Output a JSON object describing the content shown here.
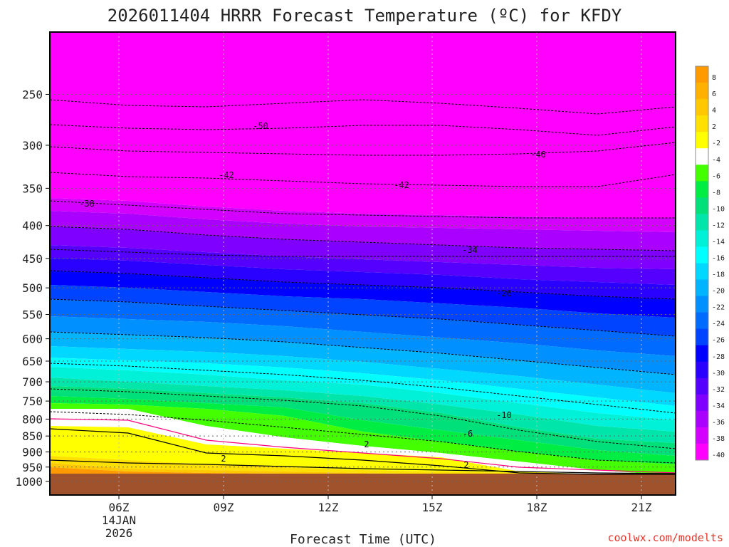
{
  "chart_data": {
    "type": "heatmap",
    "title": "2026011404 HRRR Forecast Temperature (ºC) for KFDY",
    "xlabel": "Forecast Time (UTC)",
    "ylabel": "",
    "x_ticks": [
      "06Z",
      "09Z",
      "12Z",
      "15Z",
      "18Z",
      "21Z"
    ],
    "x_date_label": [
      "14JAN",
      "2026"
    ],
    "y_ticks": [
      250,
      300,
      350,
      400,
      450,
      500,
      550,
      600,
      650,
      700,
      750,
      800,
      850,
      900,
      950,
      1000
    ],
    "y_scale": "log (pressure, hPa, inverted)",
    "colorbar_ticks": [
      8,
      6,
      4,
      2,
      -2,
      -4,
      -6,
      -8,
      -10,
      -12,
      -14,
      -16,
      -18,
      -20,
      -22,
      -24,
      -26,
      -28,
      -30,
      -32,
      -34,
      -36,
      -38,
      -40
    ],
    "colorbar_colors": [
      "#ff9a00",
      "#ffb000",
      "#ffc800",
      "#ffe000",
      "#ffff00",
      "#ffffff",
      "#44ff00",
      "#00ee44",
      "#00e07a",
      "#00e6aa",
      "#00f0d8",
      "#00ffff",
      "#00d8ff",
      "#00b4ff",
      "#0090ff",
      "#006cff",
      "#0044ff",
      "#0000ff",
      "#2a00ff",
      "#5500ff",
      "#8000ff",
      "#aa00ff",
      "#d400ff",
      "#ff00ff"
    ],
    "contour_labels": [
      "-50",
      "-46",
      "-42",
      "-42",
      "-38",
      "-34",
      "-26",
      "-10",
      "-6",
      "2",
      "2",
      "2"
    ],
    "grid": true
  },
  "credit": "coolwx.com/modelts"
}
